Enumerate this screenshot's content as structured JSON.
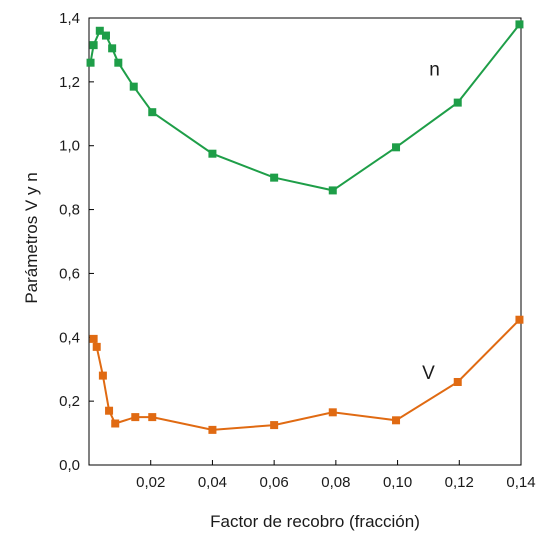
{
  "chart_data": {
    "type": "line",
    "xlabel": "Factor de recobro (fracción)",
    "ylabel": "Parámetros V y n",
    "xlim": [
      0,
      0.14
    ],
    "ylim": [
      0,
      1.4
    ],
    "x_tick_values": [
      0.02,
      0.04,
      0.06,
      0.08,
      0.1,
      0.12,
      0.14
    ],
    "x_tick_labels": [
      "0,02",
      "0,04",
      "0,06",
      "0,08",
      "0,10",
      "0,12",
      "0,14"
    ],
    "y_tick_values": [
      0,
      0.2,
      0.4,
      0.6,
      0.8,
      1.0,
      1.2,
      1.4
    ],
    "y_tick_labels": [
      "0,0",
      "0,2",
      "0,4",
      "0,6",
      "0,8",
      "1,0",
      "1,2",
      "1,4"
    ],
    "grid": false,
    "series": [
      {
        "name": "n",
        "color": "#1e9e48",
        "marker": "square",
        "label_at": [
          0.112,
          1.22
        ],
        "points": [
          [
            0.0005,
            1.26
          ],
          [
            0.0015,
            1.315
          ],
          [
            0.0035,
            1.36
          ],
          [
            0.0055,
            1.345
          ],
          [
            0.0075,
            1.305
          ],
          [
            0.0095,
            1.26
          ],
          [
            0.0145,
            1.185
          ],
          [
            0.0205,
            1.105
          ],
          [
            0.04,
            0.975
          ],
          [
            0.06,
            0.9
          ],
          [
            0.079,
            0.86
          ],
          [
            0.0995,
            0.995
          ],
          [
            0.1195,
            1.135
          ],
          [
            0.1395,
            1.38
          ]
        ]
      },
      {
        "name": "V",
        "color": "#e06a12",
        "marker": "square",
        "label_at": [
          0.11,
          0.27
        ],
        "points": [
          [
            0.0015,
            0.395
          ],
          [
            0.0025,
            0.37
          ],
          [
            0.0045,
            0.28
          ],
          [
            0.0065,
            0.17
          ],
          [
            0.0085,
            0.13
          ],
          [
            0.015,
            0.15
          ],
          [
            0.0205,
            0.15
          ],
          [
            0.04,
            0.11
          ],
          [
            0.06,
            0.125
          ],
          [
            0.079,
            0.165
          ],
          [
            0.0995,
            0.14
          ],
          [
            0.1195,
            0.26
          ],
          [
            0.1395,
            0.455
          ]
        ]
      }
    ]
  }
}
